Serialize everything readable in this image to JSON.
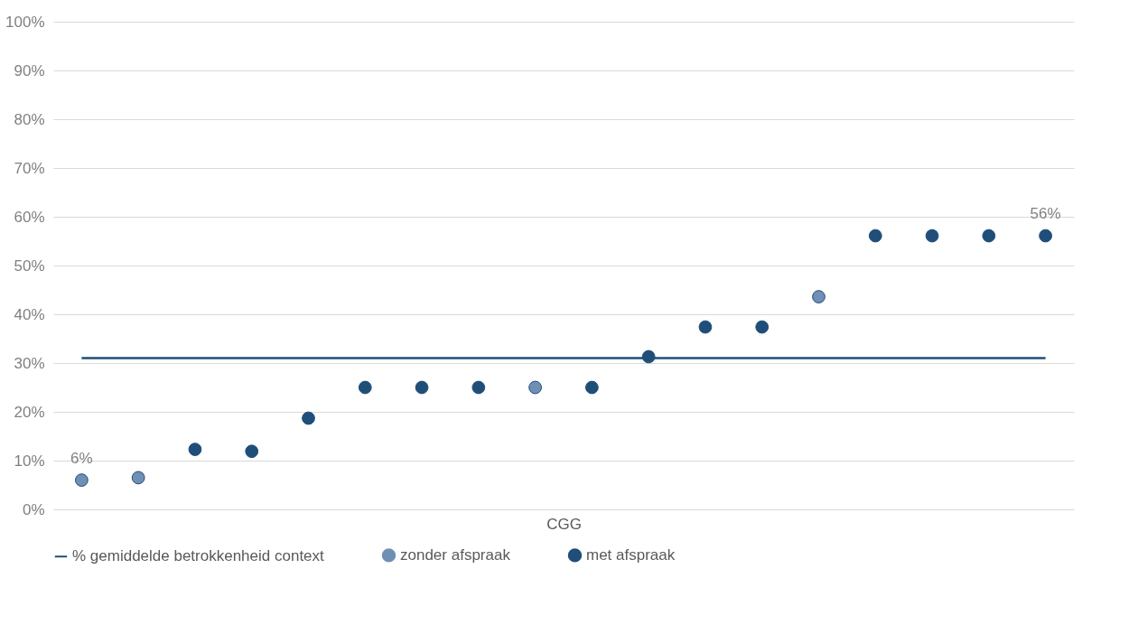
{
  "chart_data": {
    "type": "scatter",
    "xlabel": "CGG",
    "categories": [
      null,
      null,
      null,
      null,
      null,
      null,
      null,
      null,
      null,
      null,
      null,
      null,
      null,
      null,
      null,
      null,
      null,
      null
    ],
    "series": [
      {
        "name": "% gemiddelde betrokkenheid context",
        "type": "line",
        "marker": "none",
        "color": "#1f4e79",
        "values": [
          31,
          31,
          31,
          31,
          31,
          31,
          31,
          31,
          31,
          31,
          31,
          31,
          31,
          31,
          31,
          31,
          31,
          31
        ]
      },
      {
        "name": "zonder afspraak",
        "type": "scatter",
        "color": "#6f8fb5",
        "values": [
          6,
          6.5,
          null,
          null,
          null,
          null,
          null,
          null,
          25,
          null,
          null,
          null,
          null,
          43.6,
          null,
          null,
          null,
          null
        ],
        "value_labels": [
          "6%",
          null,
          null,
          null,
          null,
          null,
          null,
          null,
          null,
          null,
          null,
          null,
          null,
          null,
          null,
          null,
          null,
          null
        ]
      },
      {
        "name": "met afspraak",
        "type": "scatter",
        "color": "#1f4e79",
        "values": [
          null,
          null,
          12.3,
          11.9,
          18.7,
          25,
          25,
          25,
          null,
          25,
          31.3,
          37.4,
          37.4,
          null,
          56.1,
          56.1,
          56.1,
          56.1
        ],
        "value_labels": [
          null,
          null,
          null,
          null,
          null,
          null,
          null,
          null,
          null,
          null,
          null,
          null,
          null,
          null,
          null,
          null,
          null,
          "56%"
        ]
      }
    ],
    "ylim": [
      0,
      100
    ],
    "yticks": [
      {
        "value": 0,
        "label": "0%"
      },
      {
        "value": 10,
        "label": "10%"
      },
      {
        "value": 20,
        "label": "20%"
      },
      {
        "value": 30,
        "label": "30%"
      },
      {
        "value": 40,
        "label": "40%"
      },
      {
        "value": 50,
        "label": "50%"
      },
      {
        "value": 60,
        "label": "60%"
      },
      {
        "value": 70,
        "label": "70%"
      },
      {
        "value": 80,
        "label": "80%"
      },
      {
        "value": 90,
        "label": "90%"
      },
      {
        "value": 100,
        "label": "100%"
      }
    ],
    "grid": "y",
    "legend": "bottom"
  }
}
